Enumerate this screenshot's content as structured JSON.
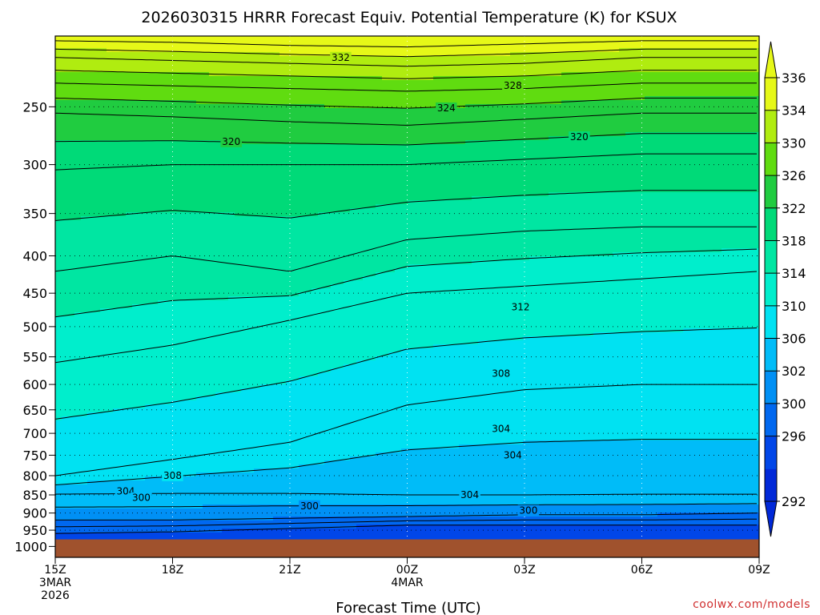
{
  "chart_data": {
    "type": "contour",
    "title": "2026030315 HRRR Forecast Equiv. Potential Temperature (K) for KSUX",
    "xlabel": "Forecast Time (UTC)",
    "ylabel": "",
    "x_ticks": [
      {
        "label": "15Z",
        "sub": [
          "3MAR",
          "2026"
        ],
        "hours": 0
      },
      {
        "label": "18Z",
        "sub": [],
        "hours": 3
      },
      {
        "label": "21Z",
        "sub": [],
        "hours": 6
      },
      {
        "label": "00Z",
        "sub": [
          "4MAR"
        ],
        "hours": 9
      },
      {
        "label": "03Z",
        "sub": [],
        "hours": 12
      },
      {
        "label": "06Z",
        "sub": [],
        "hours": 15
      },
      {
        "label": "09Z",
        "sub": [],
        "hours": 18
      }
    ],
    "xlim_hours": [
      0,
      18
    ],
    "y_axis": "pressure (hPa), log scale, inverted",
    "ylim": [
      1035,
      200
    ],
    "y_ticks": [
      250,
      300,
      350,
      400,
      450,
      500,
      550,
      600,
      650,
      700,
      750,
      800,
      850,
      900,
      950,
      1000
    ],
    "ground_pressure": 978,
    "grid": true,
    "colorbar": {
      "ticks": [
        336,
        334,
        330,
        326,
        322,
        318,
        314,
        310,
        306,
        302,
        300,
        296,
        292
      ],
      "levels": [
        292,
        296,
        300,
        302,
        306,
        310,
        314,
        318,
        322,
        326,
        330,
        334,
        336
      ],
      "colors": [
        "#0028d8",
        "#0046e8",
        "#0068f0",
        "#0090f5",
        "#00bcf8",
        "#00e2f2",
        "#00eecc",
        "#00e6a2",
        "#00da78",
        "#20cc40",
        "#60dc10",
        "#b0ec10",
        "#e6f818"
      ],
      "extend": "both"
    },
    "contour_labels": [
      {
        "text": "332",
        "hours": 7.3,
        "p": 214
      },
      {
        "text": "328",
        "hours": 11.7,
        "p": 234
      },
      {
        "text": "324",
        "hours": 10.0,
        "p": 251
      },
      {
        "text": "320",
        "hours": 4.5,
        "p": 279
      },
      {
        "text": "320",
        "hours": 13.4,
        "p": 275
      },
      {
        "text": "312",
        "hours": 11.9,
        "p": 470
      },
      {
        "text": "308",
        "hours": 11.4,
        "p": 580
      },
      {
        "text": "308",
        "hours": 3.0,
        "p": 800
      },
      {
        "text": "304",
        "hours": 11.4,
        "p": 690
      },
      {
        "text": "304",
        "hours": 11.7,
        "p": 750
      },
      {
        "text": "304",
        "hours": 1.8,
        "p": 840
      },
      {
        "text": "304",
        "hours": 10.6,
        "p": 850
      },
      {
        "text": "300",
        "hours": 2.2,
        "p": 858
      },
      {
        "text": "300",
        "hours": 6.5,
        "p": 880
      },
      {
        "text": "300",
        "hours": 12.1,
        "p": 893
      }
    ]
  },
  "credit": "coolwx.com/models"
}
